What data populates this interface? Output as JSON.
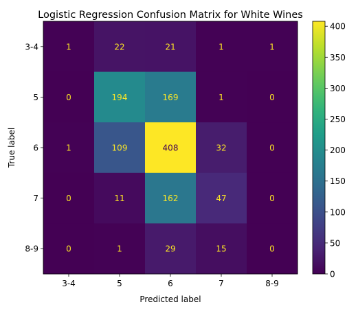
{
  "chart_data": {
    "type": "heatmap",
    "title": "Logistic Regression Confusion Matrix for White Wines",
    "xlabel": "Predicted label",
    "ylabel": "True label",
    "x_categories": [
      "3-4",
      "5",
      "6",
      "7",
      "8-9"
    ],
    "y_categories": [
      "3-4",
      "5",
      "6",
      "7",
      "8-9"
    ],
    "matrix": [
      [
        1,
        22,
        21,
        1,
        1
      ],
      [
        0,
        194,
        169,
        1,
        0
      ],
      [
        1,
        109,
        408,
        32,
        0
      ],
      [
        0,
        11,
        162,
        47,
        0
      ],
      [
        0,
        1,
        29,
        15,
        0
      ]
    ],
    "colormap": "viridis",
    "colorbar": {
      "min": 0,
      "max": 408,
      "ticks": [
        0,
        50,
        100,
        150,
        200,
        250,
        300,
        350,
        400
      ]
    },
    "text_color_light": "#fde725",
    "text_color_dark": "#440154"
  }
}
